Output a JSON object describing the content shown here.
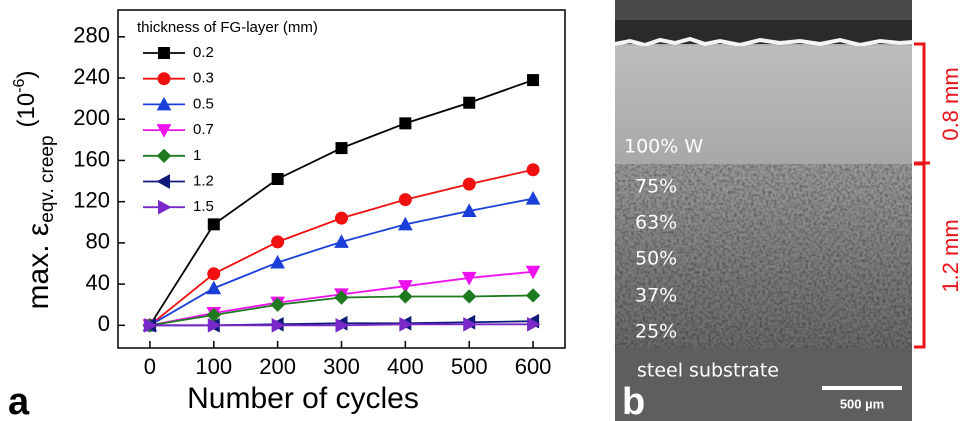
{
  "chart_data": {
    "type": "line",
    "x_label": "Number of cycles",
    "y_label": "max. ε",
    "y_label_subscript": "eqv. creep",
    "y_unit_open": "(10",
    "y_unit_exponent": "-6",
    "y_unit_close": ")",
    "legend_title": "thickness of FG-layer (mm)",
    "x": [
      0,
      100,
      200,
      300,
      400,
      500,
      600
    ],
    "xlim": [
      -50,
      650
    ],
    "xticks": [
      0,
      100,
      200,
      300,
      400,
      500,
      600
    ],
    "ylim": [
      -22,
      306
    ],
    "yticks": [
      0,
      40,
      80,
      120,
      160,
      200,
      240,
      280
    ],
    "legend": "upper left",
    "series": [
      {
        "name": "0.2",
        "color": "#000000",
        "marker": "square",
        "values": [
          0,
          98,
          142,
          172,
          196,
          216,
          238
        ]
      },
      {
        "name": "0.3",
        "color": "#f01010",
        "marker": "circle",
        "values": [
          0,
          50,
          81,
          104,
          122,
          137,
          151
        ]
      },
      {
        "name": "0.5",
        "color": "#1a3fd8",
        "marker": "triangle-up",
        "values": [
          0,
          36,
          61,
          81,
          98,
          111,
          123
        ]
      },
      {
        "name": "0.7",
        "color": "#ee10ee",
        "marker": "triangle-down",
        "values": [
          0,
          12,
          22,
          30,
          38,
          46,
          52
        ]
      },
      {
        "name": "1",
        "color": "#1f7a1f",
        "marker": "diamond",
        "values": [
          0,
          10,
          20,
          27,
          28,
          28,
          29
        ]
      },
      {
        "name": "1.2",
        "color": "#101a78",
        "marker": "triangle-left",
        "values": [
          0,
          0,
          1,
          2,
          2,
          3,
          4
        ]
      },
      {
        "name": "1.5",
        "color": "#7a28c8",
        "marker": "triangle-right",
        "values": [
          0,
          0,
          0,
          0,
          1,
          1,
          1
        ]
      }
    ]
  },
  "panel_labels": [
    "a",
    "b"
  ],
  "micrograph": {
    "layers": [
      "100% W",
      "75%",
      "63%",
      "50%",
      "37%",
      "25%",
      "steel substrate"
    ],
    "scale_bar": "500 µm",
    "thickness_labels": [
      "0.8 mm",
      "1.2 mm"
    ]
  }
}
